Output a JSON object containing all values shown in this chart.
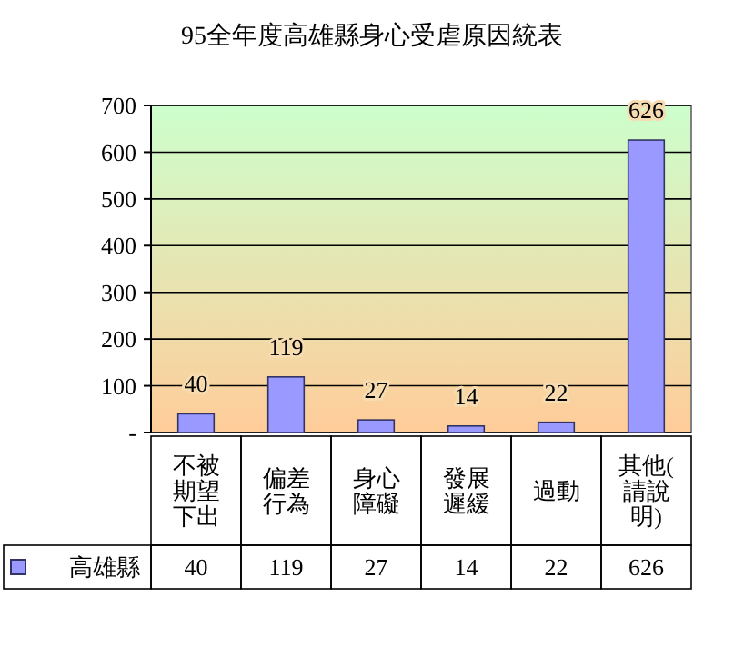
{
  "chart_data": {
    "type": "bar",
    "title": "95全年度高雄縣身心受虐原因統表",
    "categories": [
      "不被期望下出",
      "偏差行為",
      "身心障礙",
      "發展遲緩",
      "過動",
      "其他(請說明)"
    ],
    "series": [
      {
        "name": "高雄縣",
        "color": "#9999ff",
        "values": [
          40,
          119,
          27,
          14,
          22,
          626
        ],
        "value_labels": [
          "40",
          "119",
          "27",
          "14",
          "22",
          "626"
        ]
      }
    ],
    "ylim": [
      0,
      700
    ],
    "yticks": [
      {
        "value": 0,
        "label": "-"
      },
      100,
      200,
      300,
      400,
      500,
      600,
      700
    ],
    "grid": "y",
    "data_labels": true,
    "legend": "bottom"
  }
}
